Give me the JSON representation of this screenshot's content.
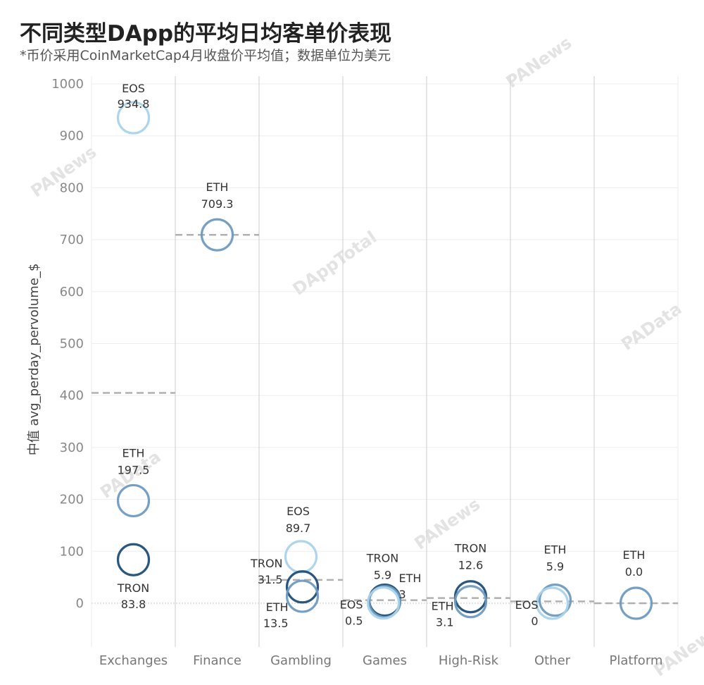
{
  "title": "不同类型DApp的平均日均客单价表现",
  "subtitle": "*币价采用CoinMarketCap4月收盘价平均值；数据单位为美元",
  "colors": {
    "EOS": "#a9d3ea",
    "ETH": "#6f9bc0",
    "TRON": "#1f4e78",
    "median": "#b0b0b0",
    "grid": "#eeeeee"
  },
  "watermarks": [
    "PANews",
    "PANews",
    "DAppTotal",
    "PAData",
    "PAData",
    "PANews",
    "PANews"
  ],
  "chart_data": {
    "type": "scatter",
    "title": "不同类型DApp的平均日均客单价表现",
    "ylabel": "中值 avg_perday_pervolume_$",
    "ylim": [
      0,
      1000
    ],
    "yticks": [
      "0",
      "100",
      "200",
      "300",
      "400",
      "500",
      "600",
      "700",
      "800",
      "900",
      "1000"
    ],
    "grid": true,
    "categories": [
      "Exchanges",
      "Finance",
      "Gambling",
      "Games",
      "High-Risk",
      "Other",
      "Platform"
    ],
    "medians": [
      405,
      709.3,
      45,
      6,
      10,
      3.5,
      0
    ],
    "points": [
      {
        "category": "Exchanges",
        "chain": "EOS",
        "value": 934.8,
        "label_chain": "EOS",
        "label_value": "934.8"
      },
      {
        "category": "Exchanges",
        "chain": "ETH",
        "value": 197.5,
        "label_chain": "ETH",
        "label_value": "197.5"
      },
      {
        "category": "Exchanges",
        "chain": "TRON",
        "value": 83.8,
        "label_chain": "TRON",
        "label_value": "83.8"
      },
      {
        "category": "Finance",
        "chain": "ETH",
        "value": 709.3,
        "label_chain": "ETH",
        "label_value": "709.3"
      },
      {
        "category": "Gambling",
        "chain": "EOS",
        "value": 89.7,
        "label_chain": "EOS",
        "label_value": "89.7"
      },
      {
        "category": "Gambling",
        "chain": "TRON",
        "value": 31.5,
        "label_chain": "TRON",
        "label_value": "31.5"
      },
      {
        "category": "Gambling",
        "chain": "ETH",
        "value": 13.5,
        "label_chain": "ETH",
        "label_value": "13.5"
      },
      {
        "category": "Games",
        "chain": "TRON",
        "value": 5.9,
        "label_chain": "TRON",
        "label_value": "5.9"
      },
      {
        "category": "Games",
        "chain": "ETH",
        "value": 3,
        "label_chain": "ETH",
        "label_value": "3"
      },
      {
        "category": "Games",
        "chain": "EOS",
        "value": 0.5,
        "label_chain": "EOS",
        "label_value": "0.5"
      },
      {
        "category": "High-Risk",
        "chain": "TRON",
        "value": 12.6,
        "label_chain": "TRON",
        "label_value": "12.6"
      },
      {
        "category": "High-Risk",
        "chain": "ETH",
        "value": 3.1,
        "label_chain": "ETH",
        "label_value": "3.1"
      },
      {
        "category": "Other",
        "chain": "ETH",
        "value": 5.9,
        "label_chain": "ETH",
        "label_value": "5.9"
      },
      {
        "category": "Other",
        "chain": "EOS",
        "value": 0,
        "label_chain": "EOS",
        "label_value": "0"
      },
      {
        "category": "Platform",
        "chain": "ETH",
        "value": 0.0,
        "label_chain": "ETH",
        "label_value": "0.0"
      }
    ]
  }
}
